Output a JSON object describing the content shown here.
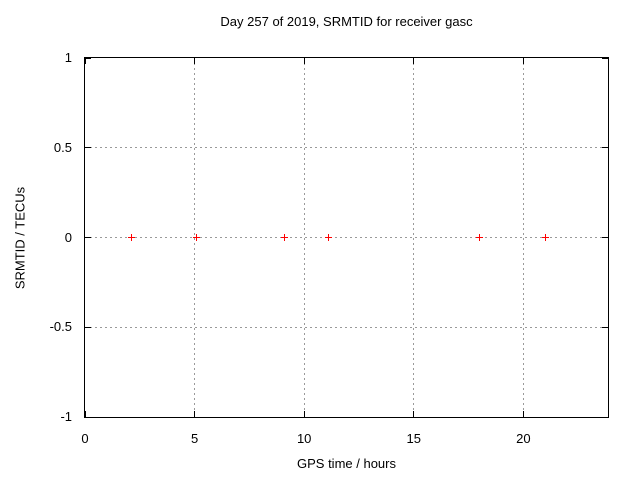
{
  "chart_data": {
    "type": "scatter",
    "title": "Day 257 of 2019, SRMTID for receiver gasc",
    "xlabel": "GPS time / hours",
    "ylabel": "SRMTID / TECUs",
    "xlim": [
      0,
      23.86
    ],
    "ylim": [
      -1,
      1
    ],
    "xticks": [
      0,
      5,
      10,
      15,
      20
    ],
    "xtick_labels": [
      "0",
      "5",
      "10",
      "15",
      "20"
    ],
    "yticks": [
      1,
      0.5,
      0,
      -0.5,
      -1
    ],
    "ytick_labels": [
      "1",
      "0.5",
      "0",
      "-0.5",
      "-1"
    ],
    "grid": true,
    "legend": "none",
    "marker": {
      "shape": "plus",
      "size": 7,
      "color": "#ff0000"
    },
    "colors": {
      "background": "#ffffff",
      "border": "#000000",
      "grid": "#9a9a9a",
      "text": "#000000"
    },
    "points": [
      {
        "x": 2.1,
        "y": 0
      },
      {
        "x": 5.1,
        "y": 0
      },
      {
        "x": 9.1,
        "y": 0
      },
      {
        "x": 11.1,
        "y": 0
      },
      {
        "x": 18.0,
        "y": 0
      },
      {
        "x": 21.0,
        "y": 0
      }
    ]
  }
}
